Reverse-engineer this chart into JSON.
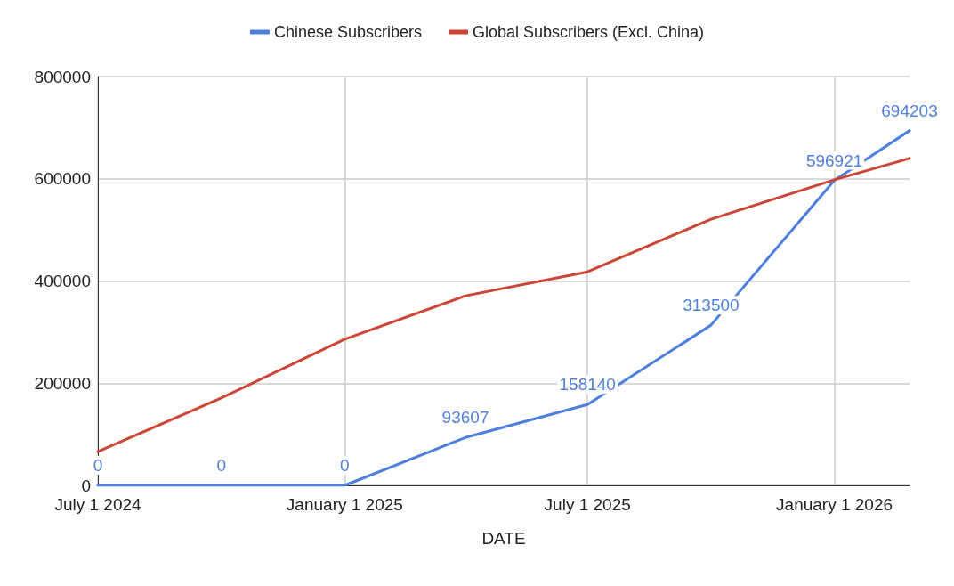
{
  "chart_data": {
    "type": "line",
    "xlabel": "DATE",
    "x": [
      "2024-07-01",
      "2024-10-01",
      "2025-01-01",
      "2025-04-01",
      "2025-07-01",
      "2025-10-01",
      "2026-01-01",
      "2026-02-26"
    ],
    "series": [
      {
        "name": "Chinese Subscribers",
        "color": "#4f7fdc",
        "values": [
          0,
          0,
          0,
          93607,
          158140,
          313500,
          596921,
          694203
        ],
        "value_labels": [
          "0",
          "0",
          "0",
          "93607",
          "158140",
          "313500",
          "596921",
          "694203"
        ]
      },
      {
        "name": "Global Subscribers (Excl. China)",
        "color": "#cc4535",
        "values": [
          66000,
          171000,
          286000,
          371000,
          418000,
          521000,
          598000,
          640000
        ]
      }
    ],
    "xlim": [
      "2024-07-01",
      "2026-02-26"
    ],
    "xticks": [
      {
        "value": "2024-07-01",
        "label": "July 1 2024"
      },
      {
        "value": "2025-01-01",
        "label": "January 1 2025"
      },
      {
        "value": "2025-07-01",
        "label": "July 1 2025"
      },
      {
        "value": "2026-01-01",
        "label": "January 1 2026"
      }
    ],
    "ylim": [
      0,
      800000
    ],
    "yticks": [
      0,
      200000,
      400000,
      600000,
      800000
    ],
    "grid": true,
    "legend": "top",
    "marker": "none",
    "line_style": "solid"
  }
}
